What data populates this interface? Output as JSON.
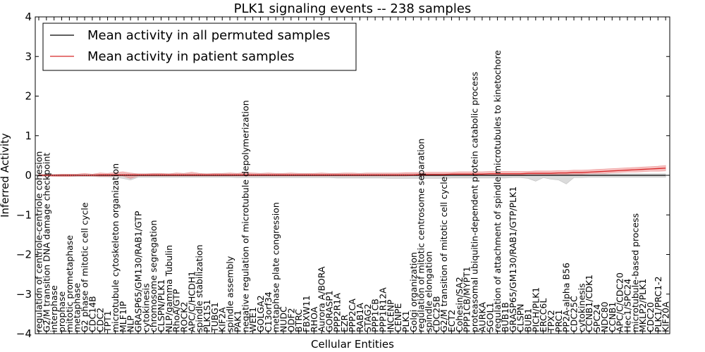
{
  "chart_data": {
    "type": "line",
    "title": "PLK1 signaling events -- 238 samples",
    "xlabel": "Cellular Entities",
    "ylabel": "Inferred Activity",
    "ylim": [
      -4,
      4
    ],
    "yticks": [
      -4,
      -3,
      -2,
      -1,
      0,
      1,
      2,
      3,
      4
    ],
    "ytick_labels": [
      "−4",
      "−3",
      "−2",
      "−1",
      "0",
      "1",
      "2",
      "3",
      "4"
    ],
    "grid": false,
    "legend_position": "top-left",
    "categories": [
      "regulation of centriole-centriole cohesion",
      "G2/M transition DNA damage checkpoint",
      "interphase",
      "prophase",
      "mitotic prometaphase",
      "metaphase",
      "G2 phase of mitotic cell cycle",
      "CDC14B",
      "CDC2",
      "TPT1",
      "microtubule cytoskeleton organization",
      "MLF1IP",
      "NLP",
      "GRASP65/GM130/RAB1/GTP",
      "cytokinesis",
      "chromosome segregation",
      "CLSPN/PLK1",
      "NLP/gamma Tubulin",
      "RhoA/GTP",
      "ROCK2",
      "APC/C/HCDH1",
      "spindle stabilization",
      "PLK1S1",
      "TUBG1",
      "KIF2A",
      "spindle assembly",
      "PAK1",
      "negative regulation of microtubule depolymerization",
      "WEE1",
      "GOLGA2",
      "C13orf34",
      "metaphase plate congression",
      "NUDC",
      "ODF2",
      "BTRC",
      "FBXW11",
      "RHOA",
      "Aurora A/BORA",
      "GORASP1",
      "PPP2R1A",
      "EZR",
      "PPP2CA",
      "RAB1A",
      "STAG2",
      "PPP1CB",
      "PPP1R12A",
      "INCENP",
      "CENPE",
      "PLK1",
      "Golgi organization",
      "regulation of mitotic centrosome separation",
      "spindle elongation",
      "CDC25B",
      "G2/M transition of mitotic cell cycle",
      "ECT2",
      "Cohesin/SA2",
      "PPP1CB/MYPT1",
      "proteasomal ubiquitin-dependent protein catabolic process",
      "AURKA",
      "SGOL1",
      "regulation of attachment of spindle microtubules to kinetochore",
      "BUB1B",
      "GRASP65/GM130/RAB1/GTP/PLK1",
      "CLSPN",
      "BUB1",
      "PICH/PLK1",
      "ERCC6L",
      "TPX2",
      "PRC1",
      "PP2A-alpha B56",
      "CDC25C",
      "cytokinesis",
      "CCNB1/CDK1",
      "SPC24",
      "NDC80",
      "CCNB1",
      "APC/C/CDC20",
      "Hec1/SPC24",
      "microtubule-based process",
      "MKLP2/PLK1",
      "CDC20",
      "PLK1/PRC1-2",
      "KIF20A"
    ],
    "series": [
      {
        "name": "Mean activity in all permuted samples",
        "color": "#000000",
        "values": [
          0,
          0,
          0,
          0,
          0,
          0,
          0,
          0,
          0,
          0,
          0,
          0,
          0,
          0,
          0,
          0,
          0,
          0,
          0,
          0,
          0,
          0,
          0,
          0,
          0,
          0,
          0,
          0,
          0,
          0,
          0,
          0,
          0,
          0,
          0,
          0,
          0,
          0,
          0,
          0,
          0,
          0,
          0,
          0,
          0,
          0,
          0,
          0,
          0,
          0,
          0,
          0,
          0,
          0,
          0,
          0,
          0,
          0,
          0,
          0,
          0,
          0,
          0,
          0,
          0,
          0,
          0,
          0,
          0,
          0,
          0,
          0,
          0,
          0,
          0,
          0,
          0,
          0,
          0,
          0,
          0,
          0,
          0
        ],
        "band_lower": [
          -0.02,
          -0.02,
          -0.02,
          -0.03,
          -0.03,
          -0.03,
          -0.03,
          -0.03,
          -0.04,
          -0.04,
          -0.05,
          -0.08,
          -0.12,
          -0.05,
          -0.05,
          -0.05,
          -0.05,
          -0.05,
          -0.05,
          -0.05,
          -0.05,
          -0.05,
          -0.05,
          -0.05,
          -0.05,
          -0.05,
          -0.06,
          -0.06,
          -0.06,
          -0.06,
          -0.06,
          -0.06,
          -0.06,
          -0.06,
          -0.06,
          -0.06,
          -0.06,
          -0.06,
          -0.06,
          -0.07,
          -0.07,
          -0.07,
          -0.07,
          -0.07,
          -0.07,
          -0.07,
          -0.08,
          -0.08,
          -0.08,
          -0.08,
          -0.08,
          -0.08,
          -0.08,
          -0.08,
          -0.07,
          -0.07,
          -0.07,
          -0.07,
          -0.07,
          -0.07,
          -0.07,
          -0.07,
          -0.06,
          -0.06,
          -0.08,
          -0.15,
          -0.06,
          -0.1,
          -0.12,
          -0.22,
          -0.06,
          -0.06,
          -0.05,
          -0.05,
          -0.05,
          -0.05,
          -0.05,
          -0.05,
          -0.05,
          -0.05,
          -0.05,
          -0.05,
          -0.05
        ],
        "band_upper": [
          0.02,
          0.02,
          0.02,
          0.02,
          0.02,
          0.02,
          0.02,
          0.02,
          0.03,
          0.03,
          0.03,
          0.04,
          0.04,
          0.04,
          0.04,
          0.04,
          0.04,
          0.04,
          0.04,
          0.04,
          0.04,
          0.04,
          0.04,
          0.04,
          0.04,
          0.04,
          0.04,
          0.04,
          0.04,
          0.04,
          0.04,
          0.04,
          0.04,
          0.04,
          0.04,
          0.04,
          0.04,
          0.04,
          0.04,
          0.04,
          0.04,
          0.04,
          0.04,
          0.04,
          0.04,
          0.04,
          0.04,
          0.04,
          0.04,
          0.04,
          0.04,
          0.04,
          0.04,
          0.04,
          0.04,
          0.04,
          0.04,
          0.04,
          0.04,
          0.04,
          0.04,
          0.04,
          0.04,
          0.04,
          0.04,
          0.04,
          0.04,
          0.04,
          0.04,
          0.04,
          0.04,
          0.04,
          0.04,
          0.04,
          0.04,
          0.04,
          0.04,
          0.04,
          0.04,
          0.04,
          0.04,
          0.04,
          0.04
        ]
      },
      {
        "name": "Mean activity in patient samples",
        "color": "#d62728",
        "values": [
          0,
          0,
          0,
          0,
          0,
          0,
          0,
          0,
          0.01,
          0.01,
          0.01,
          0.01,
          0.01,
          0.01,
          0.01,
          0.01,
          0.01,
          0.01,
          0.01,
          0.01,
          0.01,
          0.01,
          0.01,
          0.01,
          0.01,
          0.01,
          0.01,
          0.01,
          0.01,
          0.01,
          0.01,
          0.01,
          0.01,
          0.01,
          0.01,
          0.01,
          0.01,
          0.01,
          0.01,
          0.01,
          0.01,
          0.01,
          0.01,
          0.01,
          0.01,
          0.01,
          0.01,
          0.01,
          0.01,
          0.01,
          0.02,
          0.02,
          0.02,
          0.02,
          0.03,
          0.03,
          0.03,
          0.03,
          0.03,
          0.04,
          0.04,
          0.04,
          0.04,
          0.04,
          0.05,
          0.05,
          0.05,
          0.05,
          0.06,
          0.06,
          0.07,
          0.07,
          0.08,
          0.09,
          0.1,
          0.11,
          0.12,
          0.13,
          0.14,
          0.15,
          0.16,
          0.17,
          0.18
        ],
        "band_lower": [
          -0.02,
          -0.02,
          -0.03,
          -0.03,
          -0.03,
          -0.02,
          -0.02,
          -0.02,
          -0.03,
          -0.03,
          -0.02,
          -0.02,
          -0.08,
          -0.02,
          -0.02,
          -0.02,
          -0.02,
          -0.02,
          -0.02,
          -0.02,
          -0.02,
          -0.02,
          -0.02,
          -0.02,
          -0.02,
          -0.02,
          -0.02,
          -0.02,
          -0.02,
          -0.02,
          -0.02,
          -0.02,
          -0.02,
          -0.02,
          -0.02,
          -0.02,
          -0.02,
          -0.02,
          -0.02,
          -0.02,
          -0.02,
          -0.02,
          -0.02,
          -0.02,
          -0.02,
          -0.02,
          -0.02,
          -0.02,
          -0.02,
          -0.01,
          -0.01,
          -0.01,
          -0.01,
          -0.01,
          0,
          0,
          0,
          0,
          0,
          0.01,
          0.01,
          0.01,
          0.01,
          0.01,
          0.02,
          0.02,
          0.02,
          0.02,
          0.02,
          0.02,
          0.03,
          0.03,
          0.04,
          0.05,
          0.05,
          0.06,
          0.07,
          0.08,
          0.08,
          0.09,
          0.1,
          0.1,
          0.11
        ],
        "band_upper": [
          0.02,
          0.02,
          0.02,
          0.03,
          0.03,
          0.03,
          0.05,
          0.03,
          0.06,
          0.05,
          0.07,
          0.09,
          0.06,
          0.04,
          0.04,
          0.05,
          0.05,
          0.04,
          0.06,
          0.05,
          0.08,
          0.05,
          0.04,
          0.05,
          0.05,
          0.06,
          0.05,
          0.07,
          0.06,
          0.05,
          0.06,
          0.05,
          0.05,
          0.06,
          0.05,
          0.05,
          0.05,
          0.06,
          0.05,
          0.05,
          0.06,
          0.06,
          0.05,
          0.06,
          0.06,
          0.06,
          0.06,
          0.06,
          0.07,
          0.07,
          0.07,
          0.08,
          0.08,
          0.08,
          0.08,
          0.09,
          0.09,
          0.09,
          0.09,
          0.1,
          0.1,
          0.1,
          0.1,
          0.1,
          0.1,
          0.11,
          0.11,
          0.11,
          0.12,
          0.12,
          0.13,
          0.13,
          0.14,
          0.15,
          0.16,
          0.17,
          0.18,
          0.19,
          0.2,
          0.21,
          0.22,
          0.23,
          0.25
        ]
      }
    ]
  }
}
